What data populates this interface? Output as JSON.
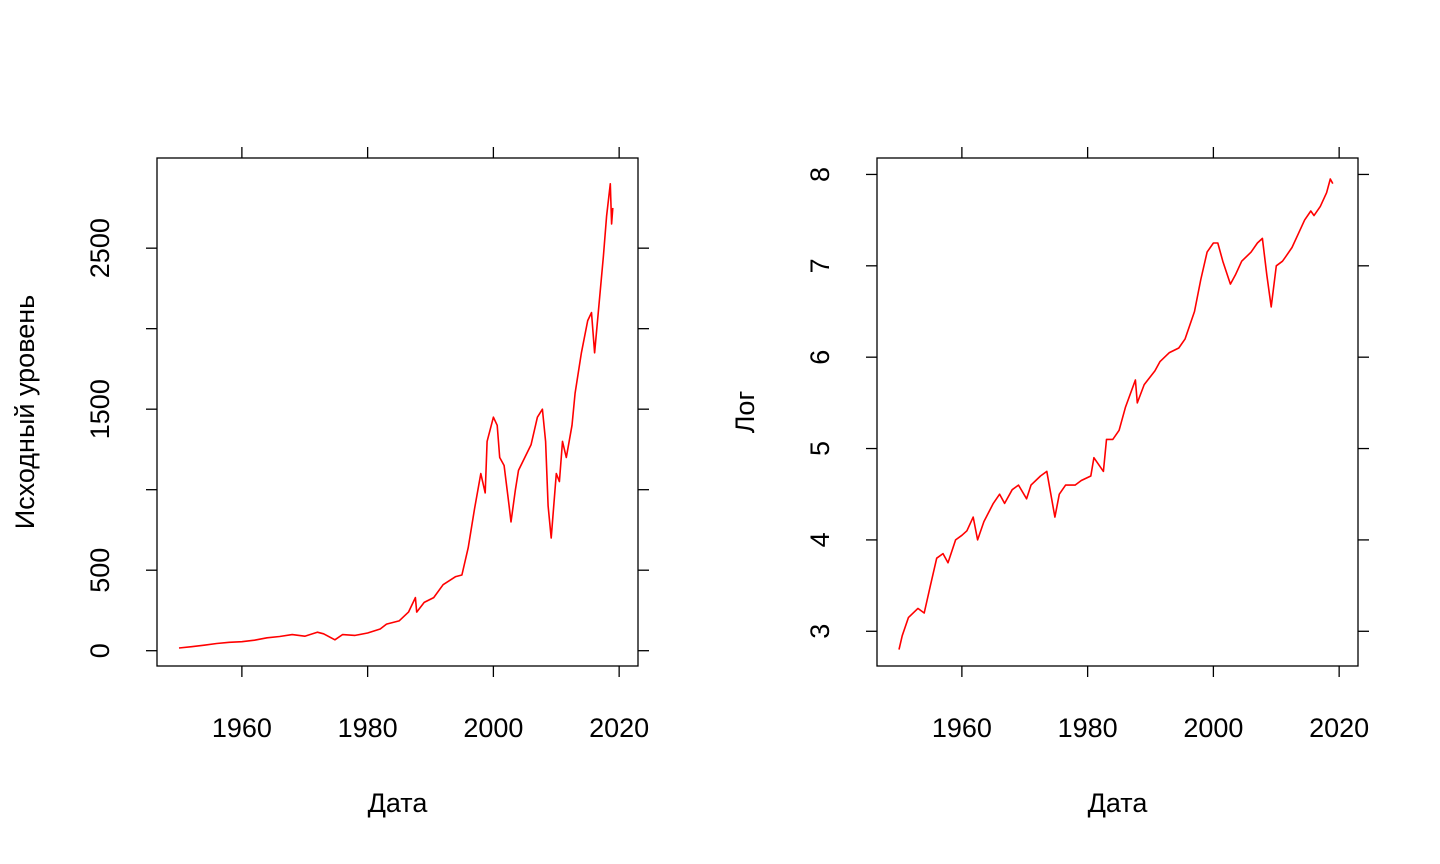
{
  "chart_data": [
    {
      "type": "line",
      "xlabel": "Дата",
      "ylabel": "Исходный уровень",
      "xlim": [
        1946.5,
        2023.0
      ],
      "ylim": [
        -95,
        3060
      ],
      "x_ticks": [
        1960,
        1980,
        2000,
        2020
      ],
      "y_ticks": [
        0,
        500,
        1500,
        2500
      ],
      "y_minor_ticks": [
        1000,
        2000
      ],
      "x_tick_labels": [
        "1960",
        "1980",
        "2000",
        "2020"
      ],
      "y_tick_labels": [
        "0",
        "500",
        "1500",
        "2500"
      ],
      "grid": false,
      "series": [
        {
          "color": "#ff0000",
          "x": [
            1950.0,
            1952.0,
            1954.0,
            1956.0,
            1958.0,
            1960.0,
            1962.0,
            1964.0,
            1966.0,
            1968.0,
            1970.0,
            1972.0,
            1973.0,
            1974.8,
            1976.0,
            1978.0,
            1980.0,
            1982.0,
            1983.0,
            1985.0,
            1986.5,
            1987.6,
            1987.8,
            1989.0,
            1990.5,
            1992.0,
            1994.0,
            1995.0,
            1996.0,
            1997.0,
            1998.0,
            1998.7,
            1999.0,
            2000.0,
            2000.6,
            2001.0,
            2001.7,
            2002.5,
            2002.8,
            2003.5,
            2004.0,
            2005.0,
            2006.0,
            2007.0,
            2007.8,
            2008.3,
            2008.7,
            2009.2,
            2010.0,
            2010.5,
            2011.0,
            2011.6,
            2012.5,
            2013.0,
            2014.0,
            2015.0,
            2015.6,
            2016.1,
            2016.8,
            2017.5,
            2018.0,
            2018.6,
            2018.8,
            2019.0
          ],
          "y": [
            17,
            25,
            34,
            45,
            52,
            56,
            65,
            80,
            88,
            100,
            90,
            115,
            105,
            68,
            100,
            95,
            110,
            135,
            165,
            185,
            240,
            330,
            240,
            300,
            330,
            410,
            460,
            470,
            640,
            880,
            1100,
            980,
            1300,
            1450,
            1400,
            1200,
            1150,
            900,
            800,
            1000,
            1120,
            1200,
            1280,
            1450,
            1500,
            1300,
            900,
            700,
            1100,
            1050,
            1300,
            1200,
            1400,
            1600,
            1850,
            2050,
            2100,
            1850,
            2150,
            2450,
            2700,
            2900,
            2650,
            2750
          ]
        }
      ]
    },
    {
      "type": "line",
      "xlabel": "Дата",
      "ylabel": "Лог",
      "xlim": [
        1946.5,
        2023.0
      ],
      "ylim": [
        2.62,
        8.18
      ],
      "x_ticks": [
        1960,
        1980,
        2000,
        2020
      ],
      "y_ticks": [
        3,
        4,
        5,
        6,
        7,
        8
      ],
      "x_tick_labels": [
        "1960",
        "1980",
        "2000",
        "2020"
      ],
      "y_tick_labels": [
        "3",
        "4",
        "5",
        "6",
        "7",
        "8"
      ],
      "grid": false,
      "series": [
        {
          "color": "#ff0000",
          "x": [
            1950.0,
            1950.5,
            1951.5,
            1953.0,
            1954.0,
            1955.0,
            1956.0,
            1957.0,
            1957.8,
            1959.0,
            1960.0,
            1960.8,
            1961.8,
            1962.5,
            1963.5,
            1965.0,
            1966.0,
            1966.8,
            1968.0,
            1969.0,
            1970.3,
            1971.0,
            1972.5,
            1973.5,
            1974.8,
            1975.5,
            1976.5,
            1978.0,
            1979.0,
            1980.5,
            1981.0,
            1982.5,
            1983.0,
            1984.0,
            1985.0,
            1986.0,
            1987.6,
            1987.9,
            1989.0,
            1990.7,
            1991.5,
            1993.0,
            1994.5,
            1995.5,
            1997.0,
            1998.0,
            1999.0,
            2000.0,
            2000.7,
            2001.5,
            2002.7,
            2003.5,
            2004.5,
            2006.0,
            2007.0,
            2007.8,
            2008.5,
            2009.2,
            2010.0,
            2011.0,
            2011.5,
            2012.5,
            2013.5,
            2014.5,
            2015.5,
            2016.0,
            2017.0,
            2018.0,
            2018.6,
            2019.0
          ],
          "y": [
            2.8,
            2.95,
            3.15,
            3.25,
            3.2,
            3.5,
            3.8,
            3.85,
            3.75,
            4.0,
            4.05,
            4.1,
            4.25,
            4.0,
            4.2,
            4.4,
            4.5,
            4.4,
            4.55,
            4.6,
            4.45,
            4.6,
            4.7,
            4.75,
            4.25,
            4.5,
            4.6,
            4.6,
            4.65,
            4.7,
            4.9,
            4.75,
            5.1,
            5.1,
            5.2,
            5.45,
            5.75,
            5.5,
            5.7,
            5.85,
            5.95,
            6.05,
            6.1,
            6.2,
            6.5,
            6.85,
            7.15,
            7.25,
            7.25,
            7.05,
            6.8,
            6.9,
            7.05,
            7.15,
            7.25,
            7.3,
            6.9,
            6.55,
            7.0,
            7.05,
            7.1,
            7.2,
            7.35,
            7.5,
            7.6,
            7.55,
            7.65,
            7.8,
            7.95,
            7.9
          ]
        }
      ]
    }
  ]
}
